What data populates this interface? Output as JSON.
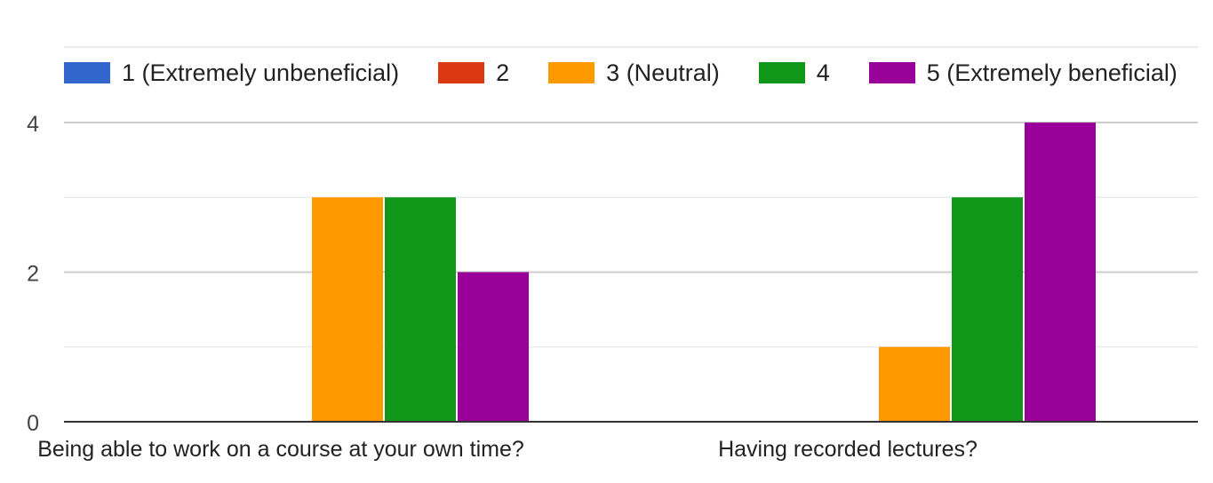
{
  "chart_data": {
    "type": "bar",
    "categories": [
      "Being able to work on a course at your own time?",
      "Having recorded lectures?"
    ],
    "series": [
      {
        "name": "1 (Extremely unbeneficial)",
        "color": "#3366cc",
        "values": [
          0,
          0
        ]
      },
      {
        "name": "2",
        "color": "#dc3912",
        "values": [
          0,
          0
        ]
      },
      {
        "name": "3 (Neutral)",
        "color": "#ff9900",
        "values": [
          3,
          1
        ]
      },
      {
        "name": "4",
        "color": "#109618",
        "values": [
          3,
          3
        ]
      },
      {
        "name": "5 (Extremely beneficial)",
        "color": "#990099",
        "values": [
          2,
          4
        ]
      }
    ],
    "y_ticks": [
      "0",
      "2",
      "4"
    ],
    "ylim": [
      0,
      4
    ],
    "grid": true,
    "legend_position": "top",
    "title": "",
    "xlabel": "",
    "ylabel": ""
  }
}
